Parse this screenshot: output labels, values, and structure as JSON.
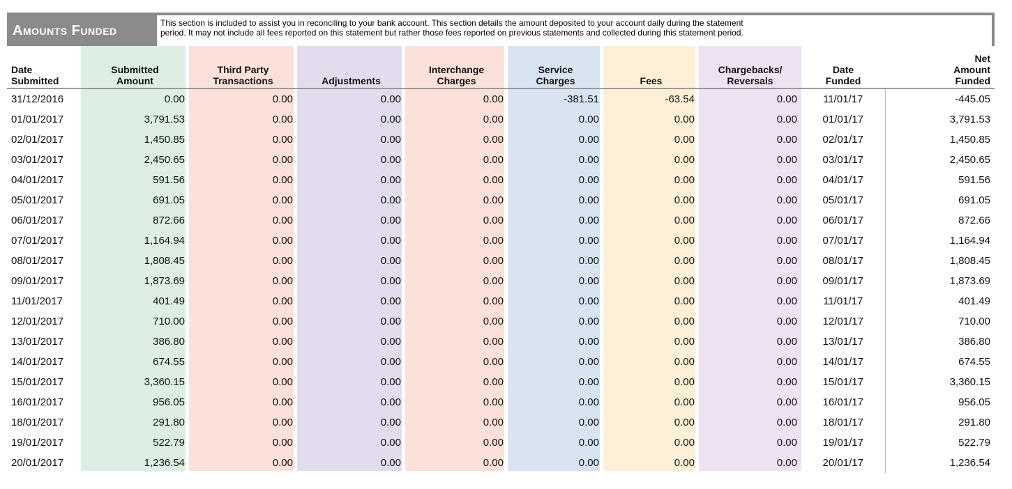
{
  "section": {
    "title": "Amounts Funded",
    "description_line1": "This section is included to assist you in reconciling to your bank account.  This section details the amount deposited to your account daily during the statement",
    "description_line2": "period.  It may not include all fees reported on this statement but rather those fees reported on previous statements and collected during this statement period."
  },
  "column_colors": {
    "submitted": "#dcefe2",
    "third_party": "#fbe1da",
    "adjustments": "#e2dcee",
    "interchange": "#fbe1da",
    "service": "#d9e4f3",
    "fees": "#fdf0d6",
    "chargebacks": "#eee2f3"
  },
  "headers": [
    [
      "Date",
      "Submitted"
    ],
    [
      "Submitted",
      "Amount"
    ],
    [
      "Third Party",
      "Transactions"
    ],
    [
      "",
      "Adjustments"
    ],
    [
      "Interchange",
      "Charges"
    ],
    [
      "Service",
      "Charges"
    ],
    [
      "",
      "Fees"
    ],
    [
      "Chargebacks/",
      "Reversals"
    ],
    [
      "Date",
      "Funded"
    ],
    [
      "Net",
      "Amount",
      "Funded"
    ]
  ],
  "rows": [
    [
      "31/12/2016",
      "0.00",
      "0.00",
      "0.00",
      "0.00",
      "-381.51",
      "-63.54",
      "0.00",
      "11/01/17",
      "-445.05"
    ],
    [
      "01/01/2017",
      "3,791.53",
      "0.00",
      "0.00",
      "0.00",
      "0.00",
      "0.00",
      "0.00",
      "01/01/17",
      "3,791.53"
    ],
    [
      "02/01/2017",
      "1,450.85",
      "0.00",
      "0.00",
      "0.00",
      "0.00",
      "0.00",
      "0.00",
      "02/01/17",
      "1,450.85"
    ],
    [
      "03/01/2017",
      "2,450.65",
      "0.00",
      "0.00",
      "0.00",
      "0.00",
      "0.00",
      "0.00",
      "03/01/17",
      "2,450.65"
    ],
    [
      "04/01/2017",
      "591.56",
      "0.00",
      "0.00",
      "0.00",
      "0.00",
      "0.00",
      "0.00",
      "04/01/17",
      "591.56"
    ],
    [
      "05/01/2017",
      "691.05",
      "0.00",
      "0.00",
      "0.00",
      "0.00",
      "0.00",
      "0.00",
      "05/01/17",
      "691.05"
    ],
    [
      "06/01/2017",
      "872.66",
      "0.00",
      "0.00",
      "0.00",
      "0.00",
      "0.00",
      "0.00",
      "06/01/17",
      "872.66"
    ],
    [
      "07/01/2017",
      "1,164.94",
      "0.00",
      "0.00",
      "0.00",
      "0.00",
      "0.00",
      "0.00",
      "07/01/17",
      "1,164.94"
    ],
    [
      "08/01/2017",
      "1,808.45",
      "0.00",
      "0.00",
      "0.00",
      "0.00",
      "0.00",
      "0.00",
      "08/01/17",
      "1,808.45"
    ],
    [
      "09/01/2017",
      "1,873.69",
      "0.00",
      "0.00",
      "0.00",
      "0.00",
      "0.00",
      "0.00",
      "09/01/17",
      "1,873.69"
    ],
    [
      "11/01/2017",
      "401.49",
      "0.00",
      "0.00",
      "0.00",
      "0.00",
      "0.00",
      "0.00",
      "11/01/17",
      "401.49"
    ],
    [
      "12/01/2017",
      "710.00",
      "0.00",
      "0.00",
      "0.00",
      "0.00",
      "0.00",
      "0.00",
      "12/01/17",
      "710.00"
    ],
    [
      "13/01/2017",
      "386.80",
      "0.00",
      "0.00",
      "0.00",
      "0.00",
      "0.00",
      "0.00",
      "13/01/17",
      "386.80"
    ],
    [
      "14/01/2017",
      "674.55",
      "0.00",
      "0.00",
      "0.00",
      "0.00",
      "0.00",
      "0.00",
      "14/01/17",
      "674.55"
    ],
    [
      "15/01/2017",
      "3,360.15",
      "0.00",
      "0.00",
      "0.00",
      "0.00",
      "0.00",
      "0.00",
      "15/01/17",
      "3,360.15"
    ],
    [
      "16/01/2017",
      "956.05",
      "0.00",
      "0.00",
      "0.00",
      "0.00",
      "0.00",
      "0.00",
      "16/01/17",
      "956.05"
    ],
    [
      "18/01/2017",
      "291.80",
      "0.00",
      "0.00",
      "0.00",
      "0.00",
      "0.00",
      "0.00",
      "18/01/17",
      "291.80"
    ],
    [
      "19/01/2017",
      "522.79",
      "0.00",
      "0.00",
      "0.00",
      "0.00",
      "0.00",
      "0.00",
      "19/01/17",
      "522.79"
    ],
    [
      "20/01/2017",
      "1,236.54",
      "0.00",
      "0.00",
      "0.00",
      "0.00",
      "0.00",
      "0.00",
      "20/01/17",
      "1,236.54"
    ]
  ]
}
